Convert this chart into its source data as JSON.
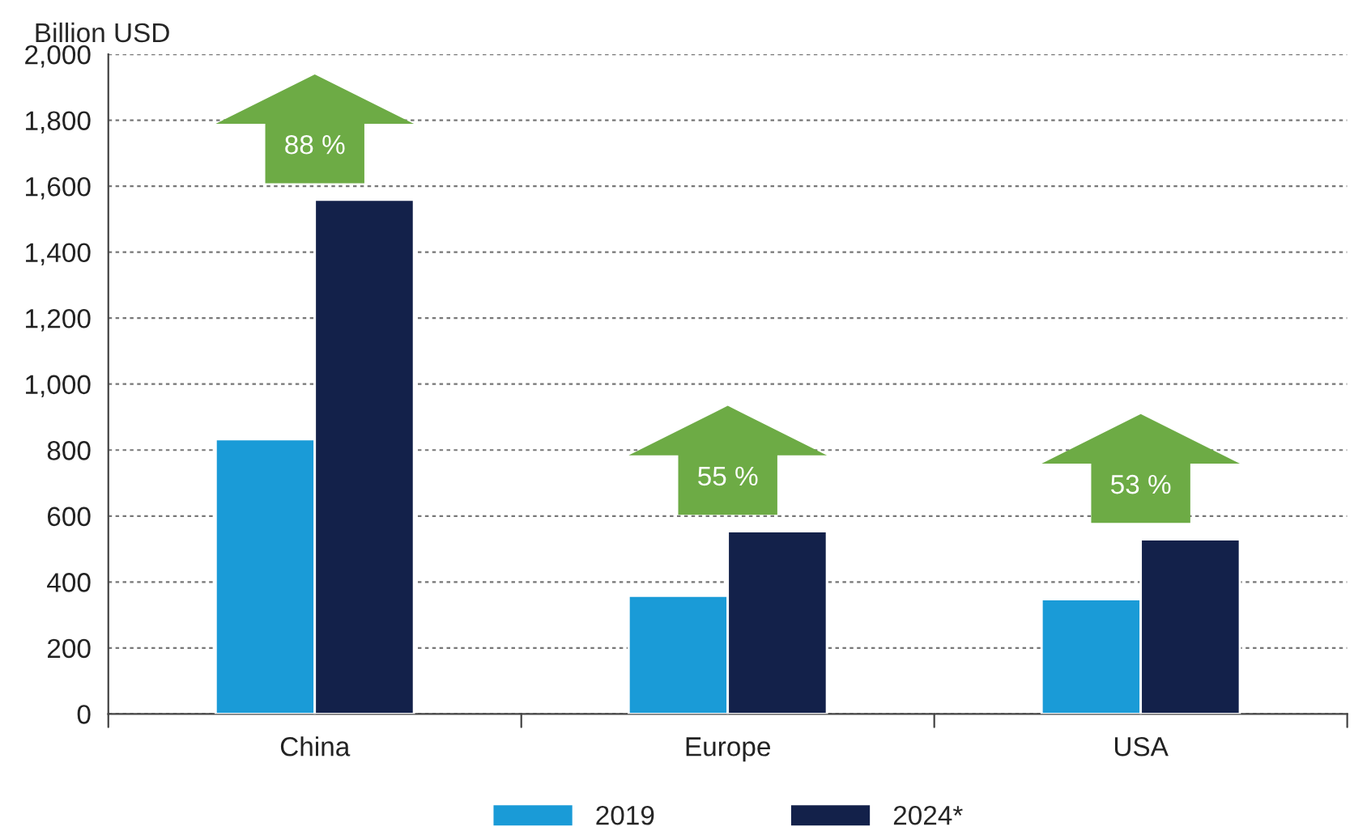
{
  "chart_data": {
    "type": "bar",
    "ylabel": "Billion USD",
    "categories": [
      "China",
      "Europe",
      "USA"
    ],
    "series": [
      {
        "name": "2019",
        "color": "#1a9bd7",
        "values": [
          833,
          358,
          348
        ]
      },
      {
        "name": "2024*",
        "color": "#13214a",
        "values": [
          1559,
          554,
          529
        ]
      }
    ],
    "annotations": [
      "88 %",
      "55 %",
      "53 %"
    ],
    "ylim": [
      0,
      2000
    ],
    "yticks": [
      {
        "value": 0,
        "label": "0"
      },
      {
        "value": 200,
        "label": "200"
      },
      {
        "value": 400,
        "label": "400"
      },
      {
        "value": 600,
        "label": "600"
      },
      {
        "value": 800,
        "label": "800"
      },
      {
        "value": 1000,
        "label": "1,000"
      },
      {
        "value": 1200,
        "label": "1,200"
      },
      {
        "value": 1400,
        "label": "1,400"
      },
      {
        "value": 1600,
        "label": "1,600"
      },
      {
        "value": 1800,
        "label": "1,800"
      },
      {
        "value": 2000,
        "label": "2,000"
      }
    ],
    "grid": "y",
    "legend": "bottom"
  }
}
